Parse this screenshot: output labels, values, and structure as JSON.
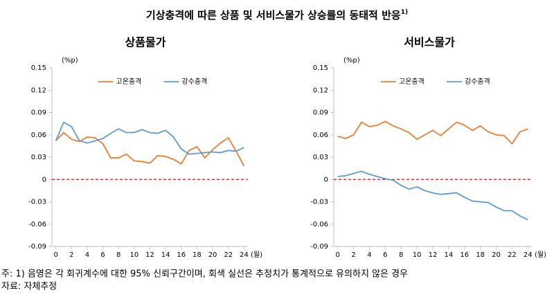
{
  "title": "기상충격에 따른 상품 및 서비스물가 상승률의 동태적 반응",
  "title_sup": "1)",
  "chart_data": [
    {
      "type": "line",
      "title": "상품물가",
      "y_label": "(%p)",
      "x_label": "(월)",
      "x": [
        0,
        1,
        2,
        3,
        4,
        5,
        6,
        7,
        8,
        9,
        10,
        11,
        12,
        13,
        14,
        15,
        16,
        17,
        18,
        19,
        20,
        21,
        22,
        23,
        24
      ],
      "xlim": [
        -0.5,
        24.5
      ],
      "xticks": [
        0,
        2,
        4,
        6,
        8,
        10,
        12,
        14,
        16,
        18,
        20,
        22,
        24
      ],
      "ylim": [
        -0.09,
        0.15
      ],
      "yticks": [
        -0.09,
        -0.06,
        -0.03,
        0,
        0.03,
        0.06,
        0.09,
        0.12,
        0.15
      ],
      "zero_line_color": "#ff0000",
      "legend": "upper center",
      "series": [
        {
          "name": "고온충격",
          "color": "#ed7d31",
          "values": [
            0.052,
            0.063,
            0.054,
            0.051,
            0.057,
            0.056,
            0.048,
            0.029,
            0.029,
            0.034,
            0.025,
            0.024,
            0.022,
            0.032,
            0.031,
            0.027,
            0.021,
            0.039,
            0.044,
            0.029,
            0.04,
            0.049,
            0.056,
            0.038,
            0.018
          ]
        },
        {
          "name": "강수충격",
          "color": "#5b9bd5",
          "values": [
            0.052,
            0.077,
            0.071,
            0.052,
            0.049,
            0.052,
            0.055,
            0.062,
            0.068,
            0.063,
            0.063,
            0.067,
            0.063,
            0.062,
            0.066,
            0.057,
            0.041,
            0.034,
            0.035,
            0.036,
            0.037,
            0.036,
            0.039,
            0.038,
            0.043
          ]
        }
      ]
    },
    {
      "type": "line",
      "title": "서비스물가",
      "y_label": "(%p)",
      "x_label": "(월)",
      "x": [
        0,
        1,
        2,
        3,
        4,
        5,
        6,
        7,
        8,
        9,
        10,
        11,
        12,
        13,
        14,
        15,
        16,
        17,
        18,
        19,
        20,
        21,
        22,
        23,
        24
      ],
      "xlim": [
        -0.5,
        24.5
      ],
      "xticks": [
        0,
        2,
        4,
        6,
        8,
        10,
        12,
        14,
        16,
        18,
        20,
        22,
        24
      ],
      "ylim": [
        -0.09,
        0.15
      ],
      "yticks": [
        -0.09,
        -0.06,
        -0.03,
        0,
        0.03,
        0.06,
        0.09,
        0.12,
        0.15
      ],
      "zero_line_color": "#ff0000",
      "legend": "upper center",
      "series": [
        {
          "name": "고온충격",
          "color": "#ed7d31",
          "values": [
            0.058,
            0.055,
            0.06,
            0.077,
            0.071,
            0.073,
            0.078,
            0.072,
            0.068,
            0.063,
            0.054,
            0.06,
            0.066,
            0.059,
            0.068,
            0.077,
            0.073,
            0.066,
            0.072,
            0.064,
            0.06,
            0.059,
            0.048,
            0.064,
            0.068
          ]
        },
        {
          "name": "강수충격",
          "color": "#5b9bd5",
          "values": [
            0.004,
            0.005,
            0.008,
            0.011,
            0.007,
            0.004,
            0.001,
            -0.001,
            -0.008,
            -0.013,
            -0.01,
            -0.015,
            -0.018,
            -0.02,
            -0.019,
            -0.018,
            -0.024,
            -0.029,
            -0.03,
            -0.031,
            -0.037,
            -0.042,
            -0.042,
            -0.049,
            -0.054
          ]
        }
      ]
    }
  ],
  "notes": [
    "주: 1) 음영은 각 회귀계수에 대한 95% 신뢰구간이며, 회색 실선은 추정치가 통계적으로 유의하지 않은 경우",
    "자료: 자체추정"
  ]
}
